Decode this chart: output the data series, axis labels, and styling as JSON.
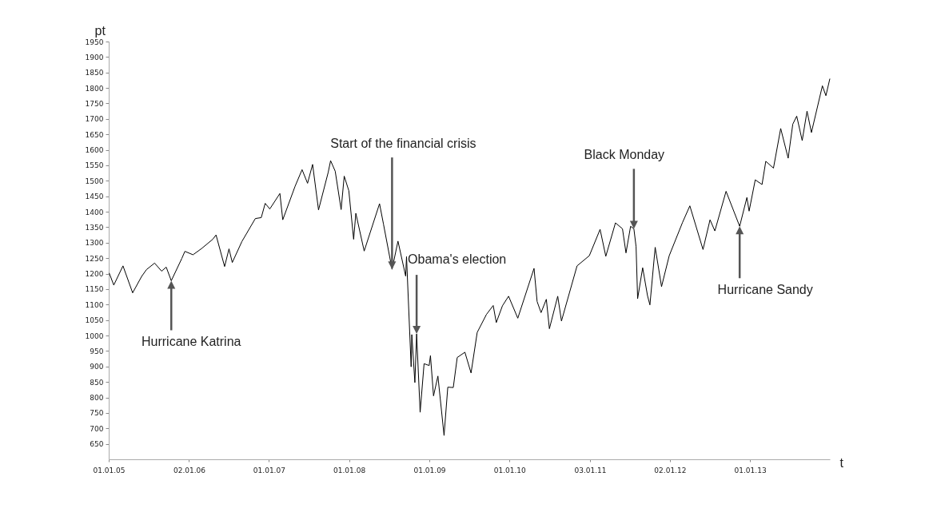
{
  "chart_data": {
    "type": "line",
    "xlabel": "t",
    "ylabel": "pt",
    "grid": false,
    "xlim": [
      "2005-01-01",
      "2013-12-31"
    ],
    "xticks": [
      {
        "value": "2005-01-01",
        "label": "01.01.05"
      },
      {
        "value": "2006-01-02",
        "label": "02.01.06"
      },
      {
        "value": "2007-01-01",
        "label": "01.01.07"
      },
      {
        "value": "2008-01-01",
        "label": "01.01.08"
      },
      {
        "value": "2009-01-01",
        "label": "01.01.09"
      },
      {
        "value": "2010-01-01",
        "label": "01.01.10"
      },
      {
        "value": "2011-01-03",
        "label": "03.01.11"
      },
      {
        "value": "2012-01-02",
        "label": "02.01.12"
      },
      {
        "value": "2013-01-01",
        "label": "01.01.13"
      }
    ],
    "ylim": [
      600,
      1950
    ],
    "yticks": [
      650,
      700,
      750,
      800,
      850,
      900,
      950,
      1000,
      1050,
      1100,
      1150,
      1200,
      1250,
      1300,
      1350,
      1400,
      1450,
      1500,
      1550,
      1600,
      1650,
      1700,
      1750,
      1800,
      1850,
      1900,
      1950
    ],
    "x": [
      "2005-01-03",
      "2005-01-24",
      "2005-03-07",
      "2005-04-20",
      "2005-05-31",
      "2005-06-22",
      "2005-07-29",
      "2005-08-30",
      "2005-09-20",
      "2005-10-13",
      "2005-11-30",
      "2005-12-14",
      "2006-01-20",
      "2006-02-28",
      "2006-04-20",
      "2006-05-05",
      "2006-06-13",
      "2006-07-03",
      "2006-07-18",
      "2006-08-31",
      "2006-10-31",
      "2006-11-27",
      "2006-12-15",
      "2007-01-05",
      "2007-02-20",
      "2007-03-05",
      "2007-04-30",
      "2007-06-01",
      "2007-06-26",
      "2007-07-19",
      "2007-08-15",
      "2007-09-28",
      "2007-10-09",
      "2007-10-30",
      "2007-11-26",
      "2007-12-10",
      "2007-12-31",
      "2008-01-22",
      "2008-02-01",
      "2008-03-10",
      "2008-05-19",
      "2008-06-06",
      "2008-07-15",
      "2008-08-11",
      "2008-09-15",
      "2008-09-19",
      "2008-10-10",
      "2008-10-13",
      "2008-10-27",
      "2008-11-04",
      "2008-11-20",
      "2008-12-08",
      "2008-12-31",
      "2009-01-06",
      "2009-01-20",
      "2009-02-09",
      "2009-03-09",
      "2009-03-26",
      "2009-04-20",
      "2009-05-08",
      "2009-06-12",
      "2009-07-10",
      "2009-08-07",
      "2009-09-18",
      "2009-10-19",
      "2009-11-02",
      "2009-11-30",
      "2009-12-28",
      "2010-02-08",
      "2010-04-23",
      "2010-05-07",
      "2010-05-25",
      "2010-06-18",
      "2010-07-02",
      "2010-08-09",
      "2010-08-26",
      "2010-11-05",
      "2010-12-31",
      "2011-02-18",
      "2011-03-16",
      "2011-04-29",
      "2011-05-31",
      "2011-06-16",
      "2011-07-07",
      "2011-07-22",
      "2011-08-01",
      "2011-08-08",
      "2011-08-31",
      "2011-09-22",
      "2011-10-03",
      "2011-10-27",
      "2011-11-25",
      "2011-12-30",
      "2012-02-29",
      "2012-04-02",
      "2012-06-01",
      "2012-07-03",
      "2012-07-25",
      "2012-09-14",
      "2012-11-15",
      "2012-12-18",
      "2012-12-28",
      "2013-01-25",
      "2013-02-25",
      "2013-03-14",
      "2013-04-18",
      "2013-05-21",
      "2013-06-24",
      "2013-07-15",
      "2013-08-02",
      "2013-08-27",
      "2013-09-18",
      "2013-10-08",
      "2013-11-27",
      "2013-12-13",
      "2013-12-31"
    ],
    "series": [
      {
        "color": "#000000",
        "values": [
          1202,
          1163,
          1225,
          1138,
          1191,
          1213,
          1234,
          1208,
          1221,
          1177,
          1249,
          1272,
          1261,
          1281,
          1311,
          1325,
          1223,
          1280,
          1236,
          1304,
          1378,
          1381,
          1427,
          1409,
          1459,
          1374,
          1482,
          1536,
          1492,
          1553,
          1406,
          1527,
          1565,
          1531,
          1407,
          1515,
          1468,
          1311,
          1395,
          1273,
          1426,
          1360,
          1214,
          1305,
          1192,
          1255,
          899,
          1003,
          848,
          1005,
          752,
          909,
          903,
          935,
          805,
          869,
          677,
          833,
          832,
          929,
          946,
          879,
          1010,
          1068,
          1097,
          1042,
          1096,
          1127,
          1056,
          1217,
          1110,
          1074,
          1117,
          1022,
          1127,
          1047,
          1225,
          1258,
          1343,
          1256,
          1364,
          1345,
          1267,
          1353,
          1345,
          1287,
          1119,
          1219,
          1129,
          1099,
          1285,
          1158,
          1258,
          1366,
          1419,
          1278,
          1374,
          1338,
          1466,
          1353,
          1446,
          1402,
          1503,
          1488,
          1563,
          1541,
          1669,
          1573,
          1683,
          1709,
          1630,
          1725,
          1656,
          1807,
          1775,
          1830
        ]
      }
    ],
    "annotations": [
      {
        "text": "Hurricane Katrina",
        "x": "2005-10-13",
        "y": 1177
      },
      {
        "text": "Start of the financial crisis",
        "x": "2008-07-15",
        "y": 1214
      },
      {
        "text": "Obama's election",
        "x": "2008-11-04",
        "y": 1005
      },
      {
        "text": "Black Monday",
        "x": "2011-07-22",
        "y": 1345
      },
      {
        "text": "Hurricane Sandy",
        "x": "2012-11-15",
        "y": 1353
      }
    ]
  }
}
